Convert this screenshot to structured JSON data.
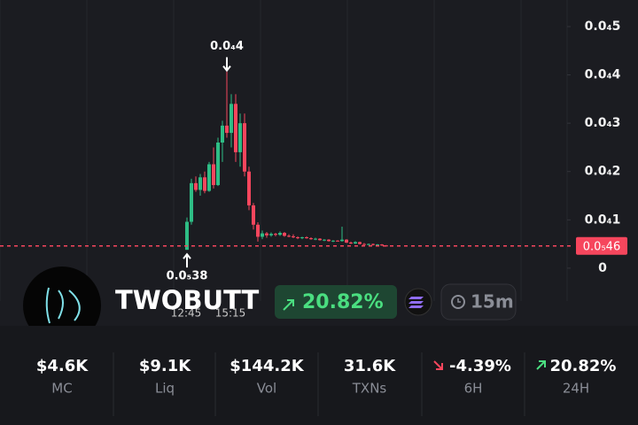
{
  "chart_data": {
    "type": "candlestick",
    "categories": [
      "12:45",
      null,
      null,
      null,
      null,
      null,
      null,
      null,
      null,
      null,
      "15:15",
      null,
      null,
      null,
      null,
      null,
      null,
      null,
      null,
      null,
      null,
      null,
      null,
      null,
      null,
      null,
      null,
      null,
      null,
      null,
      null,
      null,
      null,
      null,
      null,
      null,
      null,
      null,
      null,
      null,
      null,
      null,
      null,
      null,
      null,
      null
    ],
    "open": [
      3.8e-06,
      9.6e-06,
      1.76e-05,
      1.62e-05,
      1.88e-05,
      1.6e-05,
      2.15e-05,
      1.72e-05,
      2.6e-05,
      2.95e-05,
      2.8e-05,
      3.4e-05,
      2.4e-05,
      3e-05,
      2e-05,
      1.3e-05,
      9e-06,
      6.5e-06,
      7.2e-06,
      6.8e-06,
      7.1e-06,
      6.9e-06,
      7.3e-06,
      6.7e-06,
      6.6e-06,
      6.4e-06,
      6.3e-06,
      6.4e-06,
      6.2e-06,
      6e-06,
      6.1e-06,
      5.8e-06,
      5.9e-06,
      5.6e-06,
      5.7e-06,
      5.6e-06,
      5.9e-06,
      5.3e-06,
      5.1e-06,
      5.4e-06,
      5e-06,
      4.9e-06,
      5e-06,
      4.8e-06,
      4.9e-06,
      4.7e-06
    ],
    "high": [
      1.05e-05,
      1.85e-05,
      1.9e-05,
      1.95e-05,
      2e-05,
      2.2e-05,
      2.5e-05,
      2.7e-05,
      3.05e-05,
      4.08e-05,
      3.6e-05,
      3.6e-05,
      3.2e-05,
      3.2e-05,
      2.1e-05,
      1.35e-05,
      9.5e-06,
      7.8e-06,
      7.5e-06,
      7.4e-06,
      7.3e-06,
      7.6e-06,
      7.5e-06,
      7e-06,
      7e-06,
      6.6e-06,
      6.5e-06,
      6.6e-06,
      6.4e-06,
      6.3e-06,
      6.2e-06,
      6e-06,
      6e-06,
      5.8e-06,
      5.8e-06,
      8.6e-06,
      6e-06,
      5.5e-06,
      5.6e-06,
      5.5e-06,
      5.2e-06,
      5.1e-06,
      5.1e-06,
      5e-06,
      5e-06,
      4.8e-06
    ],
    "low": [
      3.8e-06,
      9e-06,
      1.58e-05,
      1.5e-05,
      1.55e-05,
      1.58e-05,
      1.65e-05,
      1.7e-05,
      2.2e-05,
      2.7e-05,
      2.5e-05,
      2.2e-05,
      2.1e-05,
      1.9e-05,
      1.2e-05,
      8e-06,
      5.5e-06,
      6e-06,
      6.3e-06,
      6.5e-06,
      6.6e-06,
      6.7e-06,
      6.5e-06,
      6.4e-06,
      6.2e-06,
      6e-06,
      6e-06,
      6.1e-06,
      5.9e-06,
      5.8e-06,
      5.7e-06,
      5.6e-06,
      5.5e-06,
      5.4e-06,
      5.5e-06,
      5.5e-06,
      5.2e-06,
      5e-06,
      5e-06,
      4.9e-06,
      4.8e-06,
      4.8e-06,
      4.7e-06,
      4.6e-06,
      4.6e-06,
      4.5e-06
    ],
    "close": [
      9.6e-06,
      1.76e-05,
      1.62e-05,
      1.88e-05,
      1.6e-05,
      2.15e-05,
      1.72e-05,
      2.6e-05,
      2.95e-05,
      2.8e-05,
      3.4e-05,
      2.4e-05,
      3e-05,
      2e-05,
      1.3e-05,
      9e-06,
      6.5e-06,
      7.2e-06,
      6.8e-06,
      7.1e-06,
      6.9e-06,
      7.3e-06,
      6.7e-06,
      6.6e-06,
      6.4e-06,
      6.3e-06,
      6.4e-06,
      6.2e-06,
      6e-06,
      6.1e-06,
      5.8e-06,
      5.9e-06,
      5.6e-06,
      5.7e-06,
      5.6e-06,
      5.9e-06,
      5.3e-06,
      5.1e-06,
      5.4e-06,
      5e-06,
      4.9e-06,
      5e-06,
      4.8e-06,
      4.9e-06,
      4.7e-06,
      4.6e-06
    ],
    "up_color": "#2ebd85",
    "down_color": "#f6465d",
    "ylim": [
      -6.8e-06,
      5.55e-05
    ],
    "yticks": [
      0,
      {
        "value": 1e-05,
        "label": "0.0₄1"
      },
      {
        "value": 2e-05,
        "label": "0.0₄2"
      },
      {
        "value": 3e-05,
        "label": "0.0₄3"
      },
      {
        "value": 4e-05,
        "label": "0.0₄4"
      },
      {
        "value": 5e-05,
        "label": "0.0₄5"
      }
    ],
    "annotations": [
      {
        "value": 4e-05,
        "label": "0.0₄4",
        "index": 9,
        "at": "high"
      },
      {
        "value": 3.8e-06,
        "label": "0.0₅38",
        "index": 0,
        "at": "low"
      }
    ],
    "last_price": {
      "value": 4.6e-06,
      "label": "0.0₅46"
    }
  },
  "token": {
    "name": "TWOBUTT",
    "change": "20.82%",
    "interval": "15m"
  },
  "stats": [
    {
      "value": "$4.6K",
      "label": "MC"
    },
    {
      "value": "$9.1K",
      "label": "Liq"
    },
    {
      "value": "$144.2K",
      "label": "Vol"
    },
    {
      "value": "31.6K",
      "label": "TXNs"
    },
    {
      "value": "-4.39%",
      "label": "6H"
    },
    {
      "value": "20.82%",
      "label": "24H"
    }
  ]
}
